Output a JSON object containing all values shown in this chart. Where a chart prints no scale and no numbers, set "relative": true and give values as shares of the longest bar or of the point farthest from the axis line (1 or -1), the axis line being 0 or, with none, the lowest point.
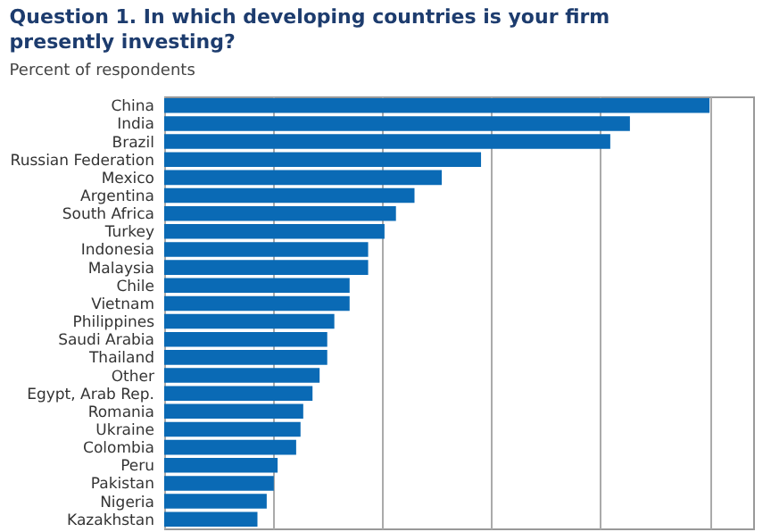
{
  "chart_data": {
    "type": "bar",
    "orientation": "horizontal",
    "relative": true,
    "title": "Question 1. In which developing countries is your firm presently investing?",
    "subtitle": "Percent of respondents",
    "categories": [
      "China",
      "India",
      "Brazil",
      "Russian Federation",
      "Mexico",
      "Argentina",
      "South Africa",
      "Turkey",
      "Indonesia",
      "Malaysia",
      "Chile",
      "Vietnam",
      "Philippines",
      "Saudi Arabia",
      "Thailand",
      "Other",
      "Egypt, Arab Rep.",
      "Romania",
      "Ukraine",
      "Colombia",
      "Peru",
      "Pakistan",
      "Nigeria",
      "Kazakhstan"
    ],
    "values": [
      1,
      0.854,
      0.818,
      0.581,
      0.509,
      0.459,
      0.425,
      0.404,
      0.374,
      0.374,
      0.34,
      0.34,
      0.312,
      0.299,
      0.299,
      0.285,
      0.272,
      0.255,
      0.25,
      0.242,
      0.208,
      0.201,
      0.188,
      0.171
    ],
    "color": "#0a6ab5",
    "grid": "x"
  }
}
